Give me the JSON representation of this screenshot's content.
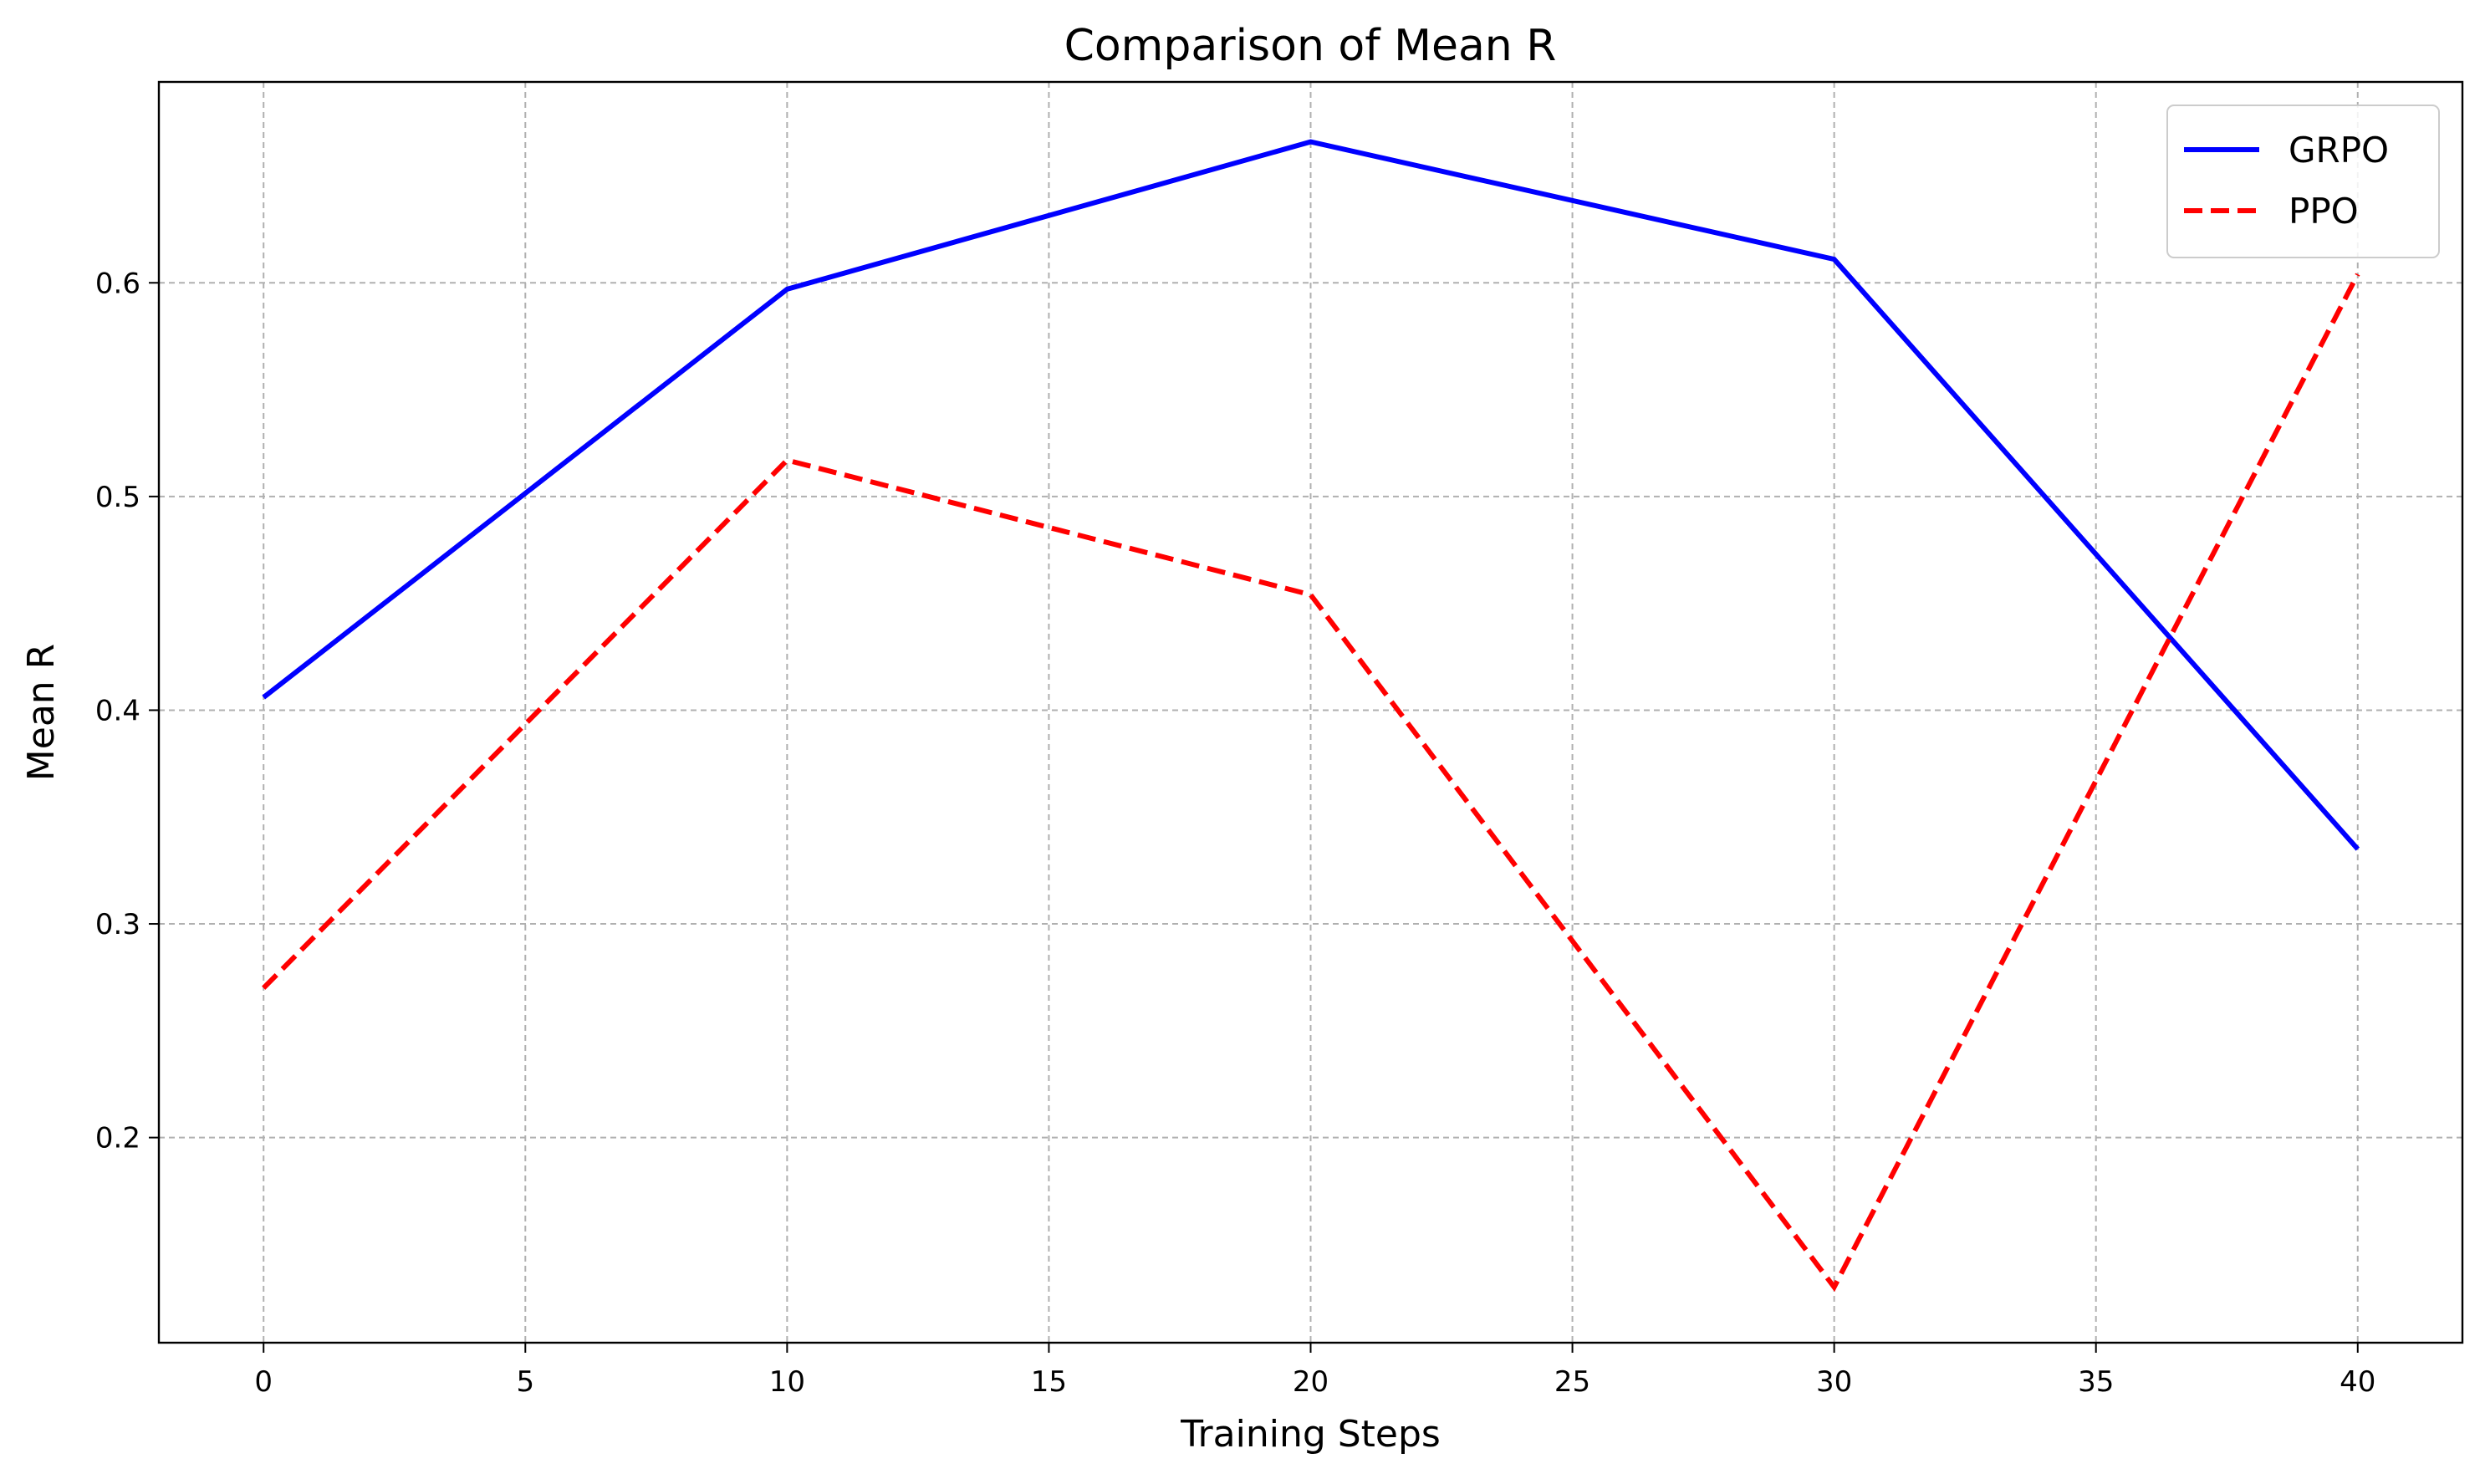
{
  "chart_data": {
    "type": "line",
    "title": "Comparison of Mean R",
    "xlabel": "Training Steps",
    "ylabel": "Mean R",
    "xlim": [
      -2,
      42
    ],
    "ylim": [
      0.104,
      0.694
    ],
    "x_ticks": [
      0,
      5,
      10,
      15,
      20,
      25,
      30,
      35,
      40
    ],
    "x_tick_labels": [
      "0",
      "5",
      "10",
      "15",
      "20",
      "25",
      "30",
      "35",
      "40"
    ],
    "y_ticks": [
      0.2,
      0.3,
      0.4,
      0.5,
      0.6
    ],
    "y_tick_labels": [
      "0.2",
      "0.3",
      "0.4",
      "0.5",
      "0.6"
    ],
    "grid": true,
    "legend_position": "top-right",
    "x": [
      0,
      10,
      20,
      30,
      40
    ],
    "series": [
      {
        "name": "GRPO",
        "values": [
          0.406,
          0.597,
          0.666,
          0.611,
          0.335
        ],
        "color": "#0000ff",
        "style": "solid"
      },
      {
        "name": "PPO",
        "values": [
          0.27,
          0.517,
          0.454,
          0.13,
          0.604
        ],
        "color": "#ff0000",
        "style": "dashed"
      }
    ]
  }
}
